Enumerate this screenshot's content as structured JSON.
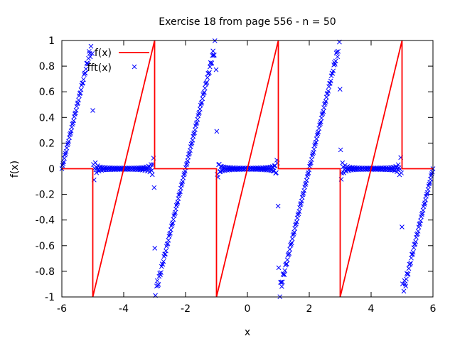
{
  "chart_data": {
    "type": "line",
    "title": "Exercise 18 from page 556 - n = 50",
    "xlabel": "x",
    "ylabel": "f(x)",
    "xlim": [
      -6,
      6
    ],
    "ylim": [
      -1,
      1
    ],
    "xticks": [
      -6,
      -4,
      -2,
      0,
      2,
      4,
      6
    ],
    "xtick_labels": [
      "-6",
      "-4",
      "-2",
      "0",
      "2",
      "4",
      "6"
    ],
    "yticks": [
      -1,
      -0.8,
      -0.6,
      -0.4,
      -0.2,
      0,
      0.2,
      0.4,
      0.6,
      0.8,
      1
    ],
    "ytick_labels": [
      "-1",
      "-0.8",
      "-0.6",
      "-0.4",
      "-0.2",
      "0",
      "0.2",
      "0.4",
      "0.6",
      "0.8",
      "1"
    ],
    "grid": false,
    "legend_position": "top-left",
    "series": [
      {
        "name": "f(x)",
        "style": "line",
        "color": "#ff0000",
        "x": [
          -6,
          -5,
          -5,
          -3,
          -3,
          -1,
          -1,
          1,
          1,
          3,
          3,
          5,
          5,
          6
        ],
        "y": [
          0,
          0,
          -1,
          1,
          0,
          0,
          -1,
          1,
          0,
          0,
          -1,
          1,
          0,
          0
        ]
      },
      {
        "name": "fft(x)",
        "style": "points",
        "marker": "x",
        "color": "#0000ff",
        "period": 4,
        "sample_count": 600,
        "x_range": [
          -6,
          6
        ],
        "harmonics": 50
      }
    ]
  }
}
